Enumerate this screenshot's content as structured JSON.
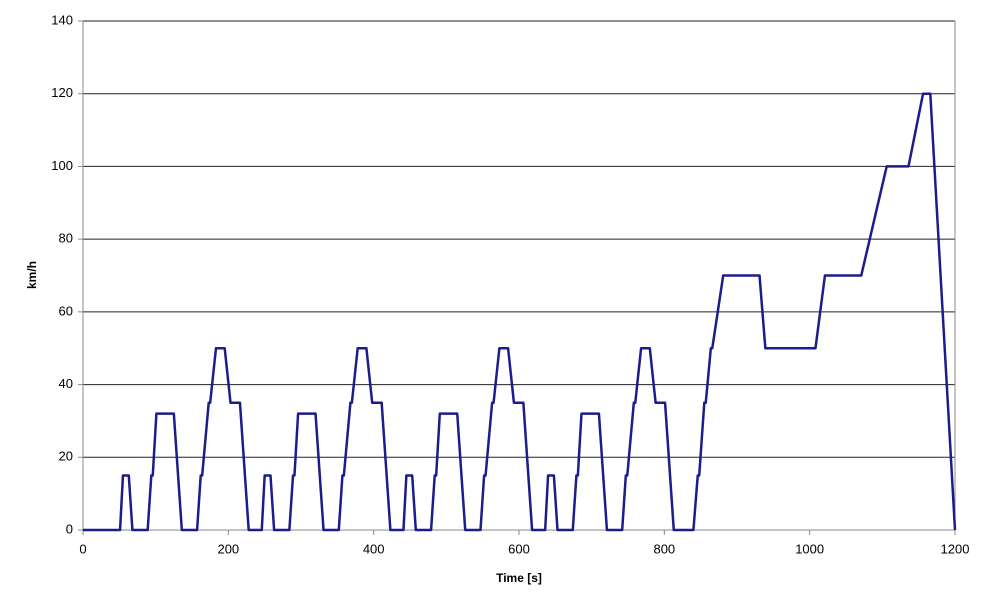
{
  "chart_data": {
    "type": "line",
    "xlabel": "Time [s]",
    "ylabel": "km/h",
    "x": [
      0,
      40,
      51,
      55,
      63,
      68,
      89,
      94,
      96,
      101,
      125,
      136,
      157,
      162,
      164,
      173,
      175,
      183,
      195,
      203,
      216,
      228,
      235,
      246,
      250,
      258,
      263,
      284,
      289,
      291,
      296,
      320,
      331,
      352,
      357,
      359,
      368,
      370,
      378,
      390,
      398,
      411,
      423,
      430,
      441,
      445,
      453,
      458,
      479,
      484,
      486,
      491,
      515,
      526,
      547,
      552,
      554,
      563,
      565,
      573,
      585,
      593,
      606,
      618,
      625,
      636,
      640,
      648,
      653,
      674,
      679,
      681,
      686,
      710,
      721,
      742,
      747,
      749,
      758,
      760,
      768,
      780,
      788,
      801,
      813,
      840,
      846,
      848,
      855,
      857,
      864,
      866,
      881,
      931,
      939,
      1008,
      1021,
      1071,
      1106,
      1136,
      1156,
      1166,
      1200
    ],
    "series": [
      {
        "color": "#1c1c8a",
        "values": [
          0,
          0,
          0,
          15,
          15,
          0,
          0,
          15,
          15,
          32,
          32,
          0,
          0,
          15,
          15,
          35,
          35,
          50,
          50,
          35,
          35,
          0,
          0,
          0,
          15,
          15,
          0,
          0,
          15,
          15,
          32,
          32,
          0,
          0,
          15,
          15,
          35,
          35,
          50,
          50,
          35,
          35,
          0,
          0,
          0,
          15,
          15,
          0,
          0,
          15,
          15,
          32,
          32,
          0,
          0,
          15,
          15,
          35,
          35,
          50,
          50,
          35,
          35,
          0,
          0,
          0,
          15,
          15,
          0,
          0,
          15,
          15,
          32,
          32,
          0,
          0,
          15,
          15,
          35,
          35,
          50,
          50,
          35,
          35,
          0,
          0,
          15,
          15,
          35,
          35,
          50,
          50,
          70,
          70,
          50,
          50,
          70,
          70,
          100,
          100,
          120,
          120,
          0
        ]
      }
    ],
    "xlim": [
      0,
      1200
    ],
    "xticks": [
      0,
      200,
      400,
      600,
      800,
      1000,
      1200
    ],
    "ylim": [
      0,
      140
    ],
    "yticks": [
      0,
      20,
      40,
      60,
      80,
      100,
      120,
      140
    ],
    "grid": true
  }
}
